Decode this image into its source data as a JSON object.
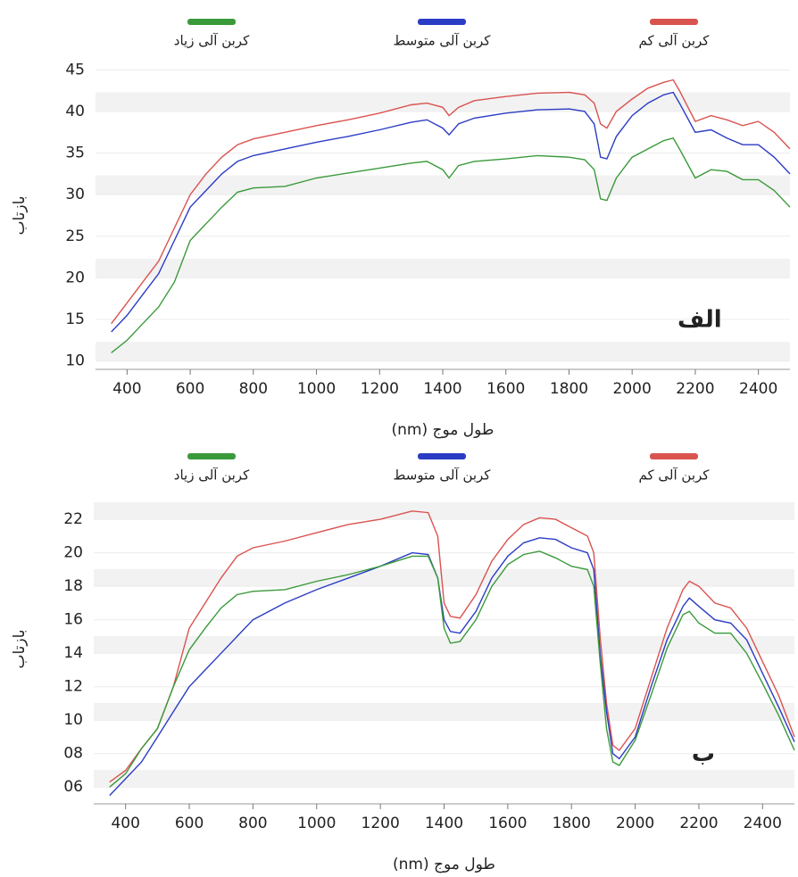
{
  "chart_data": [
    {
      "type": "line",
      "annotation": "الف",
      "x_label": "طول موج (nm)",
      "y_label": "بازتاب",
      "x": [
        350,
        400,
        450,
        500,
        550,
        600,
        650,
        700,
        750,
        800,
        900,
        1000,
        1100,
        1200,
        1300,
        1350,
        1400,
        1420,
        1450,
        1500,
        1600,
        1700,
        1800,
        1850,
        1880,
        1900,
        1920,
        1950,
        2000,
        2050,
        2100,
        2130,
        2150,
        2200,
        2250,
        2300,
        2350,
        2400,
        2450,
        2500
      ],
      "series": [
        {
          "name": "کربن آلی کم",
          "color": "#d9534f",
          "values": [
            14.5,
            17,
            19.5,
            22,
            26,
            30,
            32.5,
            34.5,
            36,
            36.7,
            37.5,
            38.3,
            39,
            39.8,
            40.8,
            41,
            40.5,
            39.5,
            40.5,
            41.3,
            41.8,
            42.2,
            42.3,
            42,
            41,
            38.5,
            38,
            40,
            41.5,
            42.8,
            43.5,
            43.8,
            42.5,
            38.8,
            39.5,
            39,
            38.3,
            38.8,
            37.5,
            35.5
          ]
        },
        {
          "name": "کربن آلی متوسط",
          "color": "#2b3cc4",
          "values": [
            13.5,
            15.5,
            18,
            20.5,
            24.5,
            28.5,
            30.5,
            32.5,
            34,
            34.7,
            35.5,
            36.3,
            37,
            37.8,
            38.7,
            39,
            38,
            37.2,
            38.5,
            39.2,
            39.8,
            40.2,
            40.3,
            40,
            38.5,
            34.5,
            34.3,
            37,
            39.5,
            41,
            42,
            42.3,
            41,
            37.5,
            37.8,
            36.8,
            36,
            36,
            34.5,
            32.5
          ]
        },
        {
          "name": "کربن آلی زیاد",
          "color": "#3a9a3a",
          "values": [
            11,
            12.5,
            14.5,
            16.5,
            19.5,
            24.5,
            26.5,
            28.5,
            30.3,
            30.8,
            31,
            32,
            32.6,
            33.2,
            33.8,
            34,
            33,
            32,
            33.5,
            34,
            34.3,
            34.7,
            34.5,
            34.2,
            33,
            29.5,
            29.3,
            32,
            34.5,
            35.5,
            36.5,
            36.8,
            35.5,
            32,
            33,
            32.8,
            31.8,
            31.8,
            30.5,
            28.5
          ]
        }
      ],
      "xlim": [
        300,
        2500
      ],
      "ylim": [
        9,
        46
      ],
      "xticks": [
        400,
        600,
        800,
        1000,
        1200,
        1400,
        1600,
        1800,
        2000,
        2200,
        2400
      ],
      "yticks": [
        10,
        15,
        20,
        25,
        30,
        35,
        40,
        45
      ],
      "grid": true
    },
    {
      "type": "line",
      "annotation": "ب",
      "x_label": "طول موج (nm)",
      "y_label": "بازتاب",
      "x": [
        350,
        400,
        450,
        500,
        550,
        600,
        650,
        700,
        750,
        800,
        900,
        1000,
        1100,
        1200,
        1300,
        1350,
        1380,
        1400,
        1420,
        1450,
        1500,
        1550,
        1600,
        1650,
        1700,
        1750,
        1800,
        1850,
        1870,
        1890,
        1910,
        1930,
        1950,
        2000,
        2050,
        2100,
        2150,
        2170,
        2200,
        2250,
        2300,
        2350,
        2400,
        2450,
        2500
      ],
      "series": [
        {
          "name": "کربن آلی کم",
          "color": "#d9534f",
          "values": [
            6.3,
            7,
            8.3,
            9.5,
            12,
            15.5,
            17,
            18.5,
            19.8,
            20.3,
            20.7,
            21.2,
            21.7,
            22,
            22.5,
            22.4,
            21,
            17,
            16.2,
            16.1,
            17.5,
            19.5,
            20.8,
            21.7,
            22.1,
            22,
            21.5,
            21,
            20,
            15,
            11,
            8.5,
            8.2,
            9.5,
            12.5,
            15.5,
            17.8,
            18.3,
            18,
            17,
            16.7,
            15.5,
            13.5,
            11.5,
            9
          ]
        },
        {
          "name": "کربن آلی متوسط",
          "color": "#2b3cc4",
          "values": [
            5.5,
            6.5,
            7.5,
            9,
            10.5,
            12,
            13,
            14,
            15,
            16,
            17,
            17.8,
            18.5,
            19.2,
            20,
            19.9,
            18.5,
            16,
            15.3,
            15.2,
            16.5,
            18.5,
            19.8,
            20.6,
            20.9,
            20.8,
            20.3,
            20,
            19,
            14,
            10.5,
            8,
            7.7,
            9,
            12,
            14.8,
            16.8,
            17.3,
            16.8,
            16,
            15.8,
            14.8,
            12.8,
            10.8,
            8.7
          ]
        },
        {
          "name": "کربن آلی زیاد",
          "color": "#3a9a3a",
          "values": [
            6,
            6.8,
            8.3,
            9.5,
            12,
            14.2,
            15.5,
            16.7,
            17.5,
            17.7,
            17.8,
            18.3,
            18.7,
            19.2,
            19.8,
            19.8,
            18.5,
            15.5,
            14.6,
            14.7,
            16,
            18,
            19.3,
            19.9,
            20.1,
            19.7,
            19.2,
            19,
            18,
            13.5,
            9.5,
            7.5,
            7.3,
            8.8,
            11.5,
            14.3,
            16.3,
            16.5,
            15.8,
            15.2,
            15.2,
            14,
            12.2,
            10.3,
            8.2
          ]
        }
      ],
      "xlim": [
        300,
        2500
      ],
      "ylim": [
        5,
        23.5
      ],
      "xticks": [
        400,
        600,
        800,
        1000,
        1200,
        1400,
        1600,
        1800,
        2000,
        2200,
        2400
      ],
      "yticks": [
        {
          "value": 6,
          "label": "06"
        },
        {
          "value": 8,
          "label": "08"
        },
        10,
        12,
        14,
        16,
        18,
        20,
        22
      ],
      "grid": true
    }
  ]
}
